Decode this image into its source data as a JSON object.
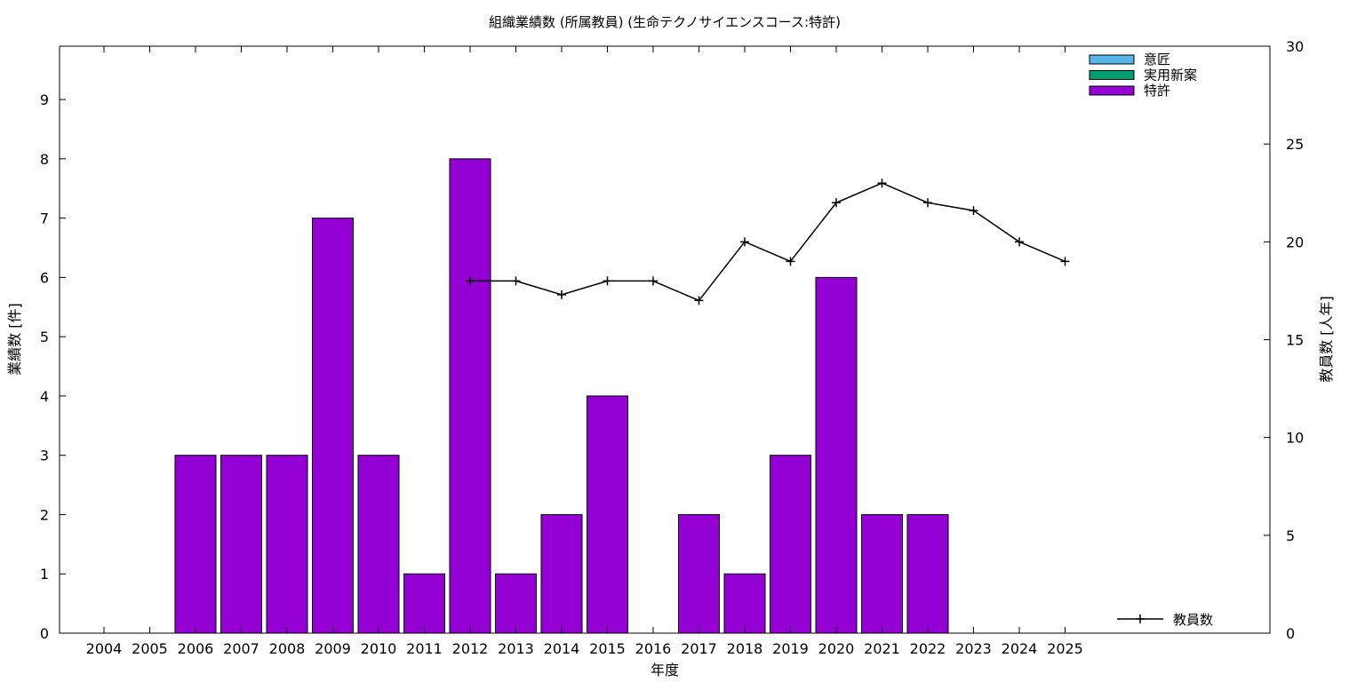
{
  "chart_data": {
    "type": "bar",
    "title": "組織業績数 (所属教員) (生命テクノサイエンスコース:特許)",
    "xlabel": "年度",
    "ylabel": "業績数 [件]",
    "y2label": "教員数 [人年]",
    "categories": [
      "2004",
      "2005",
      "2006",
      "2007",
      "2008",
      "2009",
      "2010",
      "2011",
      "2012",
      "2013",
      "2014",
      "2015",
      "2016",
      "2017",
      "2018",
      "2019",
      "2020",
      "2021",
      "2022",
      "2023",
      "2024",
      "2025"
    ],
    "ylim": [
      0,
      9.9
    ],
    "yticks": [
      "0",
      "1",
      "2",
      "3",
      "4",
      "5",
      "6",
      "7",
      "8",
      "9"
    ],
    "y2lim": [
      0,
      30
    ],
    "y2ticks": [
      "0",
      "5",
      "10",
      "15",
      "20",
      "25",
      "30"
    ],
    "legend_position": "top-right",
    "series": [
      {
        "name": "意匠",
        "color": "#56b4e9",
        "kind": "bar",
        "values": [
          0,
          0,
          0,
          0,
          0,
          0,
          0,
          0,
          0,
          0,
          0,
          0,
          0,
          0,
          0,
          0,
          0,
          0,
          0,
          0,
          0,
          0
        ]
      },
      {
        "name": "実用新案",
        "color": "#009e73",
        "kind": "bar",
        "values": [
          0,
          0,
          0,
          0,
          0,
          0,
          0,
          0,
          0,
          0,
          0,
          0,
          0,
          0,
          0,
          0,
          0,
          0,
          0,
          0,
          0,
          0
        ]
      },
      {
        "name": "特許",
        "color": "#9400d3",
        "kind": "bar",
        "values": [
          0,
          0,
          3,
          3,
          3,
          7,
          3,
          1,
          8,
          1,
          2,
          4,
          0,
          2,
          1,
          3,
          6,
          2,
          2,
          0,
          0,
          0
        ]
      },
      {
        "name": "教員数",
        "color": "#000000",
        "kind": "line",
        "axis": "right",
        "x": [
          "2012",
          "2013",
          "2014",
          "2015",
          "2016",
          "2017",
          "2018",
          "2019",
          "2020",
          "2021",
          "2022",
          "2023",
          "2024",
          "2025"
        ],
        "values": [
          18,
          18,
          17.3,
          18,
          18,
          17,
          20,
          19,
          22,
          23,
          22,
          21.6,
          20,
          19
        ]
      }
    ]
  }
}
